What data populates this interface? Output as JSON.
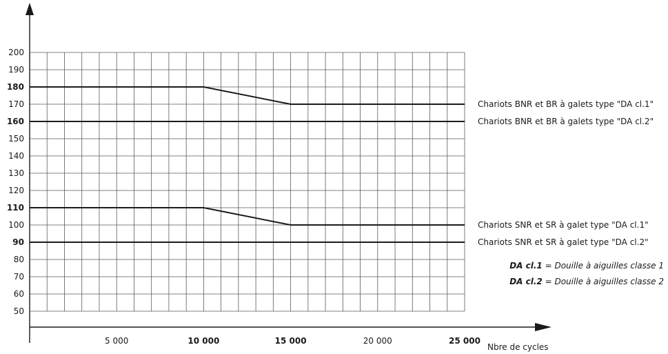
{
  "chart_data": {
    "type": "line",
    "xlabel": "Nbre de cycles",
    "ylabel": "",
    "xlim": [
      0,
      25000
    ],
    "ylim": [
      40,
      200
    ],
    "grid": true,
    "x_ticks": [
      {
        "value": 5000,
        "label": "5 000",
        "bold": false
      },
      {
        "value": 10000,
        "label": "10 000",
        "bold": true
      },
      {
        "value": 15000,
        "label": "15 000",
        "bold": true
      },
      {
        "value": 20000,
        "label": "20 000",
        "bold": false
      },
      {
        "value": 25000,
        "label": "25 000",
        "bold": true
      }
    ],
    "y_ticks": [
      {
        "value": 200,
        "label": "200",
        "bold": false
      },
      {
        "value": 190,
        "label": "190",
        "bold": false
      },
      {
        "value": 180,
        "label": "180",
        "bold": true
      },
      {
        "value": 170,
        "label": "170",
        "bold": false
      },
      {
        "value": 160,
        "label": "160",
        "bold": true
      },
      {
        "value": 150,
        "label": "150",
        "bold": false
      },
      {
        "value": 140,
        "label": "140",
        "bold": false
      },
      {
        "value": 130,
        "label": "130",
        "bold": false
      },
      {
        "value": 120,
        "label": "120",
        "bold": false
      },
      {
        "value": 110,
        "label": "110",
        "bold": true
      },
      {
        "value": 100,
        "label": "100",
        "bold": false
      },
      {
        "value": 90,
        "label": "90",
        "bold": true
      },
      {
        "value": 80,
        "label": "80",
        "bold": false
      },
      {
        "value": 70,
        "label": "70",
        "bold": false
      },
      {
        "value": 60,
        "label": "60",
        "bold": false
      },
      {
        "value": 50,
        "label": "50",
        "bold": false
      }
    ],
    "series": [
      {
        "name": "Chariots BNR et BR à galets type \"DA cl.1\"",
        "x": [
          0,
          10000,
          15000,
          25000
        ],
        "y": [
          180,
          180,
          170,
          170
        ]
      },
      {
        "name": "Chariots BNR et BR à galets type \"DA cl.2\"",
        "x": [
          0,
          25000
        ],
        "y": [
          160,
          160
        ]
      },
      {
        "name": "Chariots SNR et SR à galet type \"DA cl.1\"",
        "x": [
          0,
          10000,
          15000,
          25000
        ],
        "y": [
          110,
          110,
          100,
          100
        ]
      },
      {
        "name": "Chariots SNR et SR à galet type \"DA cl.2\"",
        "x": [
          0,
          25000
        ],
        "y": [
          90,
          90
        ]
      }
    ]
  },
  "legend": {
    "items": [
      {
        "key": "DA cl.1",
        "text": " = Douille à aiguilles classe 1"
      },
      {
        "key": "DA cl.2",
        "text": " = Douille à aiguilles classe 2"
      }
    ]
  }
}
